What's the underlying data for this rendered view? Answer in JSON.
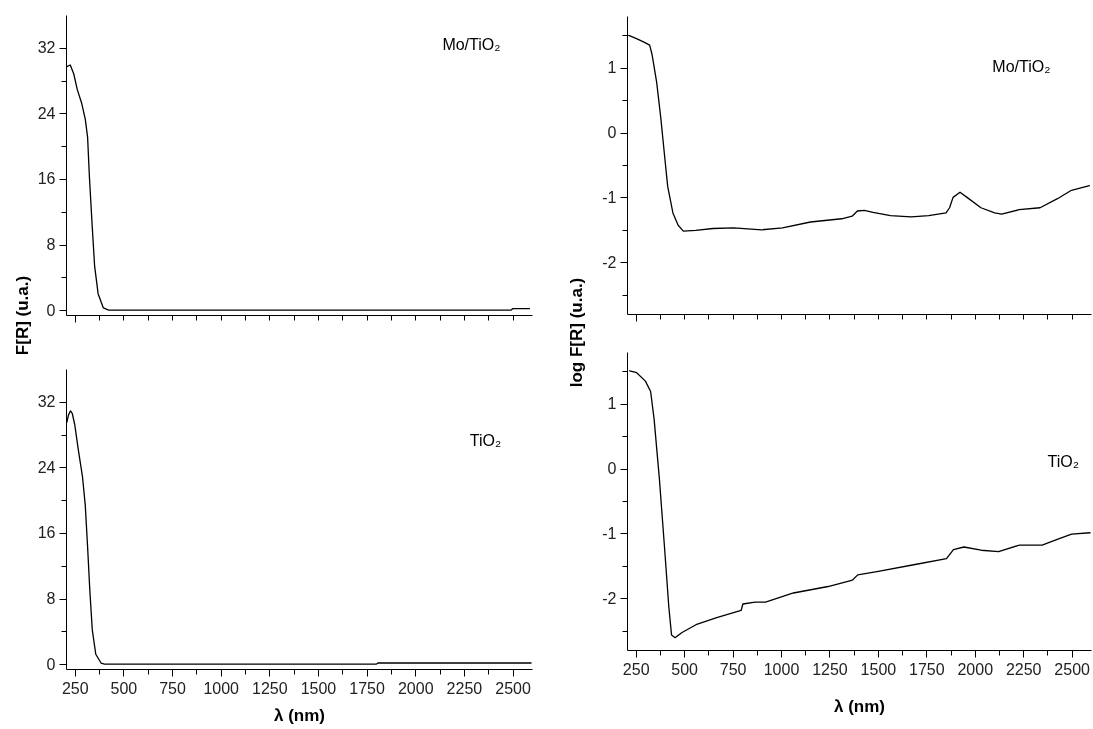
{
  "chart_data": [
    {
      "type": "line",
      "ylabel": "F[R] (u.a.)",
      "tick_labels": "y",
      "xlim": [
        205,
        2600
      ],
      "ylim": [
        -0.6,
        36
      ],
      "xticks": [
        250,
        {
          "value": 375,
          "label": null
        },
        {
          "value": 500,
          "label": null
        },
        {
          "value": 625,
          "label": null
        },
        {
          "value": 750,
          "label": null
        },
        {
          "value": 875,
          "label": null
        },
        {
          "value": 1000,
          "label": null
        },
        {
          "value": 1125,
          "label": null
        },
        {
          "value": 1250,
          "label": null
        },
        {
          "value": 1375,
          "label": null
        },
        {
          "value": 1500,
          "label": null
        },
        {
          "value": 1625,
          "label": null
        },
        {
          "value": 1750,
          "label": null
        },
        {
          "value": 1875,
          "label": null
        },
        {
          "value": 2000,
          "label": null
        },
        {
          "value": 2125,
          "label": null
        },
        {
          "value": 2250,
          "label": null
        },
        {
          "value": 2375,
          "label": null
        },
        {
          "value": 2500,
          "label": null
        }
      ],
      "yticks": [
        0,
        {
          "value": 4,
          "label": null
        },
        8,
        {
          "value": 12,
          "label": null
        },
        16,
        {
          "value": 20,
          "label": null
        },
        24,
        {
          "value": 28,
          "label": null
        },
        32
      ],
      "annotations": [
        "Mo/TiO₂"
      ],
      "series": [
        {
          "color": "#000000",
          "x": [
            209,
            227,
            245,
            263,
            286,
            304,
            316,
            325,
            340,
            352,
            370,
            397,
            424,
            2493,
            2500,
            2587
          ],
          "values": [
            29.7,
            29.9,
            28.8,
            26.9,
            25.2,
            23.3,
            21.1,
            16.4,
            10.1,
            5.4,
            2.0,
            0.26,
            0,
            0,
            0.17,
            0.17
          ]
        }
      ]
    },
    {
      "type": "line",
      "ylabel": "log F[R] (u.a.)",
      "tick_labels": "y",
      "xlim": [
        205,
        2600
      ],
      "ylim": [
        -2.8,
        1.8
      ],
      "xticks": [
        250,
        {
          "value": 375,
          "label": null
        },
        {
          "value": 500,
          "label": null
        },
        {
          "value": 625,
          "label": null
        },
        {
          "value": 750,
          "label": null
        },
        {
          "value": 875,
          "label": null
        },
        {
          "value": 1000,
          "label": null
        },
        {
          "value": 1125,
          "label": null
        },
        {
          "value": 1250,
          "label": null
        },
        {
          "value": 1375,
          "label": null
        },
        {
          "value": 1500,
          "label": null
        },
        {
          "value": 1625,
          "label": null
        },
        {
          "value": 1750,
          "label": null
        },
        {
          "value": 1875,
          "label": null
        },
        {
          "value": 2000,
          "label": null
        },
        {
          "value": 2125,
          "label": null
        },
        {
          "value": 2250,
          "label": null
        },
        {
          "value": 2375,
          "label": null
        },
        {
          "value": 2500,
          "label": null
        }
      ],
      "yticks": [
        {
          "value": -2.5,
          "label": null
        },
        -2,
        {
          "value": -1.5,
          "label": null
        },
        -1,
        {
          "value": -0.5,
          "label": null
        },
        0,
        {
          "value": 0.5,
          "label": null
        },
        1,
        {
          "value": 1.5,
          "label": null
        }
      ],
      "annotations": [
        "Mo/TiO₂"
      ],
      "series": [
        {
          "color": "#000000",
          "x": [
            214,
            254,
            290,
            322,
            334,
            358,
            379,
            397,
            415,
            442,
            469,
            496,
            559,
            649,
            756,
            900,
            1008,
            1152,
            1313,
            1367,
            1394,
            1430,
            1475,
            1565,
            1672,
            1762,
            1852,
            1870,
            1888,
            1924,
            1960,
            2032,
            2103,
            2139,
            2229,
            2337,
            2427,
            2499,
            2592
          ],
          "values": [
            1.5,
            1.45,
            1.4,
            1.35,
            1.21,
            0.78,
            0.24,
            -0.3,
            -0.83,
            -1.24,
            -1.43,
            -1.52,
            -1.51,
            -1.48,
            -1.47,
            -1.5,
            -1.47,
            -1.38,
            -1.33,
            -1.29,
            -1.21,
            -1.2,
            -1.23,
            -1.28,
            -1.3,
            -1.28,
            -1.24,
            -1.16,
            -1.0,
            -0.92,
            -1.0,
            -1.16,
            -1.24,
            -1.26,
            -1.19,
            -1.16,
            -1.02,
            -0.89,
            -0.82
          ]
        }
      ]
    },
    {
      "type": "line",
      "xlabel": "λ (nm)",
      "xlim": [
        205,
        2600
      ],
      "ylim": [
        -0.6,
        36
      ],
      "xticks": [
        250,
        {
          "value": 375,
          "label": null
        },
        500,
        {
          "value": 625,
          "label": null
        },
        750,
        {
          "value": 875,
          "label": null
        },
        1000,
        {
          "value": 1125,
          "label": null
        },
        1250,
        {
          "value": 1375,
          "label": null
        },
        1500,
        {
          "value": 1625,
          "label": null
        },
        1750,
        {
          "value": 1875,
          "label": null
        },
        2000,
        {
          "value": 2125,
          "label": null
        },
        2250,
        {
          "value": 2375,
          "label": null
        },
        2500
      ],
      "yticks": [
        0,
        {
          "value": 4,
          "label": null
        },
        8,
        {
          "value": 12,
          "label": null
        },
        16,
        {
          "value": 20,
          "label": null
        },
        24,
        {
          "value": 28,
          "label": null
        },
        32
      ],
      "annotations": [
        "TiO₂"
      ],
      "series": [
        {
          "color": "#000000",
          "x": [
            209,
            218,
            228,
            237,
            250,
            268,
            290,
            304,
            316,
            327,
            340,
            358,
            385,
            403,
            1801,
            1808,
            2595
          ],
          "values": [
            29.5,
            30.4,
            30.9,
            30.6,
            29.2,
            26.2,
            22.8,
            19.4,
            14.3,
            9.2,
            4.2,
            1.2,
            0.13,
            0,
            0,
            0.13,
            0.13
          ]
        }
      ]
    },
    {
      "type": "line",
      "xlabel": "λ (nm)",
      "xlim": [
        205,
        2600
      ],
      "ylim": [
        -2.8,
        1.8
      ],
      "xticks": [
        250,
        {
          "value": 375,
          "label": null
        },
        500,
        {
          "value": 625,
          "label": null
        },
        750,
        {
          "value": 875,
          "label": null
        },
        1000,
        {
          "value": 1125,
          "label": null
        },
        1250,
        {
          "value": 1375,
          "label": null
        },
        1500,
        {
          "value": 1625,
          "label": null
        },
        1750,
        {
          "value": 1875,
          "label": null
        },
        2000,
        {
          "value": 2125,
          "label": null
        },
        2250,
        {
          "value": 2375,
          "label": null
        },
        2500
      ],
      "yticks": [
        {
          "value": -2.5,
          "label": null
        },
        -2,
        {
          "value": -1.5,
          "label": null
        },
        -1,
        {
          "value": -0.5,
          "label": null
        },
        0,
        {
          "value": 0.5,
          "label": null
        },
        1,
        {
          "value": 1.5,
          "label": null
        }
      ],
      "annotations": [
        "TiO₂"
      ],
      "series": [
        {
          "color": "#000000",
          "x": [
            219,
            255,
            300,
            327,
            345,
            372,
            399,
            421,
            435,
            453,
            489,
            561,
            668,
            794,
            803,
            866,
            920,
            1064,
            1243,
            1369,
            1396,
            1495,
            1692,
            1854,
            1890,
            1944,
            2033,
            2123,
            2231,
            2348,
            2429,
            2500,
            2595
          ],
          "values": [
            1.51,
            1.48,
            1.35,
            1.19,
            0.76,
            -0.15,
            -1.23,
            -2.14,
            -2.57,
            -2.61,
            -2.53,
            -2.41,
            -2.3,
            -2.19,
            -2.09,
            -2.06,
            -2.06,
            -1.92,
            -1.82,
            -1.72,
            -1.64,
            -1.59,
            -1.48,
            -1.39,
            -1.25,
            -1.21,
            -1.26,
            -1.28,
            -1.18,
            -1.18,
            -1.09,
            -1.01,
            -0.99
          ]
        }
      ]
    }
  ]
}
